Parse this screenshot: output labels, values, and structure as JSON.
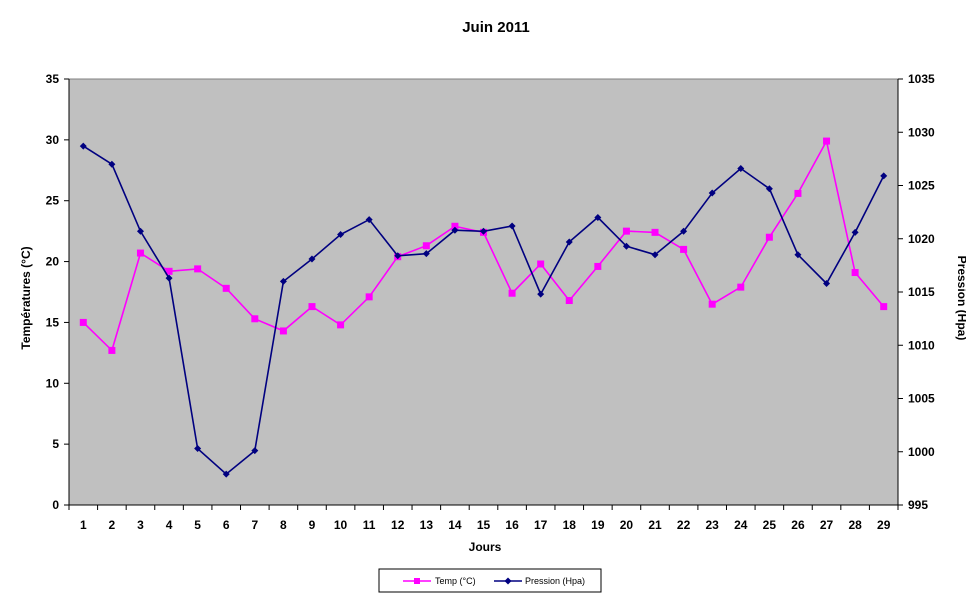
{
  "chart_data": {
    "type": "line",
    "title": "Juin 2011",
    "xlabel": "Jours",
    "ylabel_left": "Températures  (°C)",
    "ylabel_right": "Pression (Hpa)",
    "categories": [
      "1",
      "2",
      "3",
      "4",
      "5",
      "6",
      "7",
      "8",
      "9",
      "10",
      "11",
      "12",
      "13",
      "14",
      "15",
      "16",
      "17",
      "18",
      "19",
      "20",
      "21",
      "22",
      "23",
      "24",
      "25",
      "26",
      "27",
      "28",
      "29"
    ],
    "y_left": {
      "min": 0,
      "max": 35,
      "step": 5,
      "ticks": [
        "0",
        "5",
        "10",
        "15",
        "20",
        "25",
        "30",
        "35"
      ]
    },
    "y_right": {
      "min": 995,
      "max": 1035,
      "step": 5,
      "ticks": [
        "995",
        "1000",
        "1005",
        "1010",
        "1015",
        "1020",
        "1025",
        "1030",
        "1035"
      ]
    },
    "plot_background": "#c0c0c0",
    "grid": false,
    "legend_position": "bottom",
    "series": [
      {
        "name": "Temp (°C)",
        "axis": "left",
        "color": "#ff00ff",
        "marker": "square",
        "values": [
          15.0,
          12.7,
          20.7,
          19.2,
          19.4,
          17.8,
          15.3,
          14.3,
          16.3,
          14.8,
          17.1,
          20.4,
          21.3,
          22.9,
          22.4,
          17.4,
          19.8,
          16.8,
          19.6,
          22.5,
          22.4,
          21.0,
          16.5,
          17.9,
          22.0,
          25.6,
          29.9,
          19.1,
          16.3
        ]
      },
      {
        "name": "Pression (Hpa)",
        "axis": "right",
        "color": "#000080",
        "marker": "diamond",
        "values": [
          1028.7,
          1027.0,
          1020.7,
          1016.3,
          1000.3,
          997.9,
          1000.1,
          1016.0,
          1018.1,
          1020.4,
          1021.8,
          1018.4,
          1018.6,
          1020.8,
          1020.7,
          1021.2,
          1014.8,
          1019.7,
          1022.0,
          1019.3,
          1018.5,
          1020.7,
          1024.3,
          1026.6,
          1024.7,
          1018.5,
          1015.8,
          1020.6,
          1025.9
        ]
      }
    ]
  }
}
